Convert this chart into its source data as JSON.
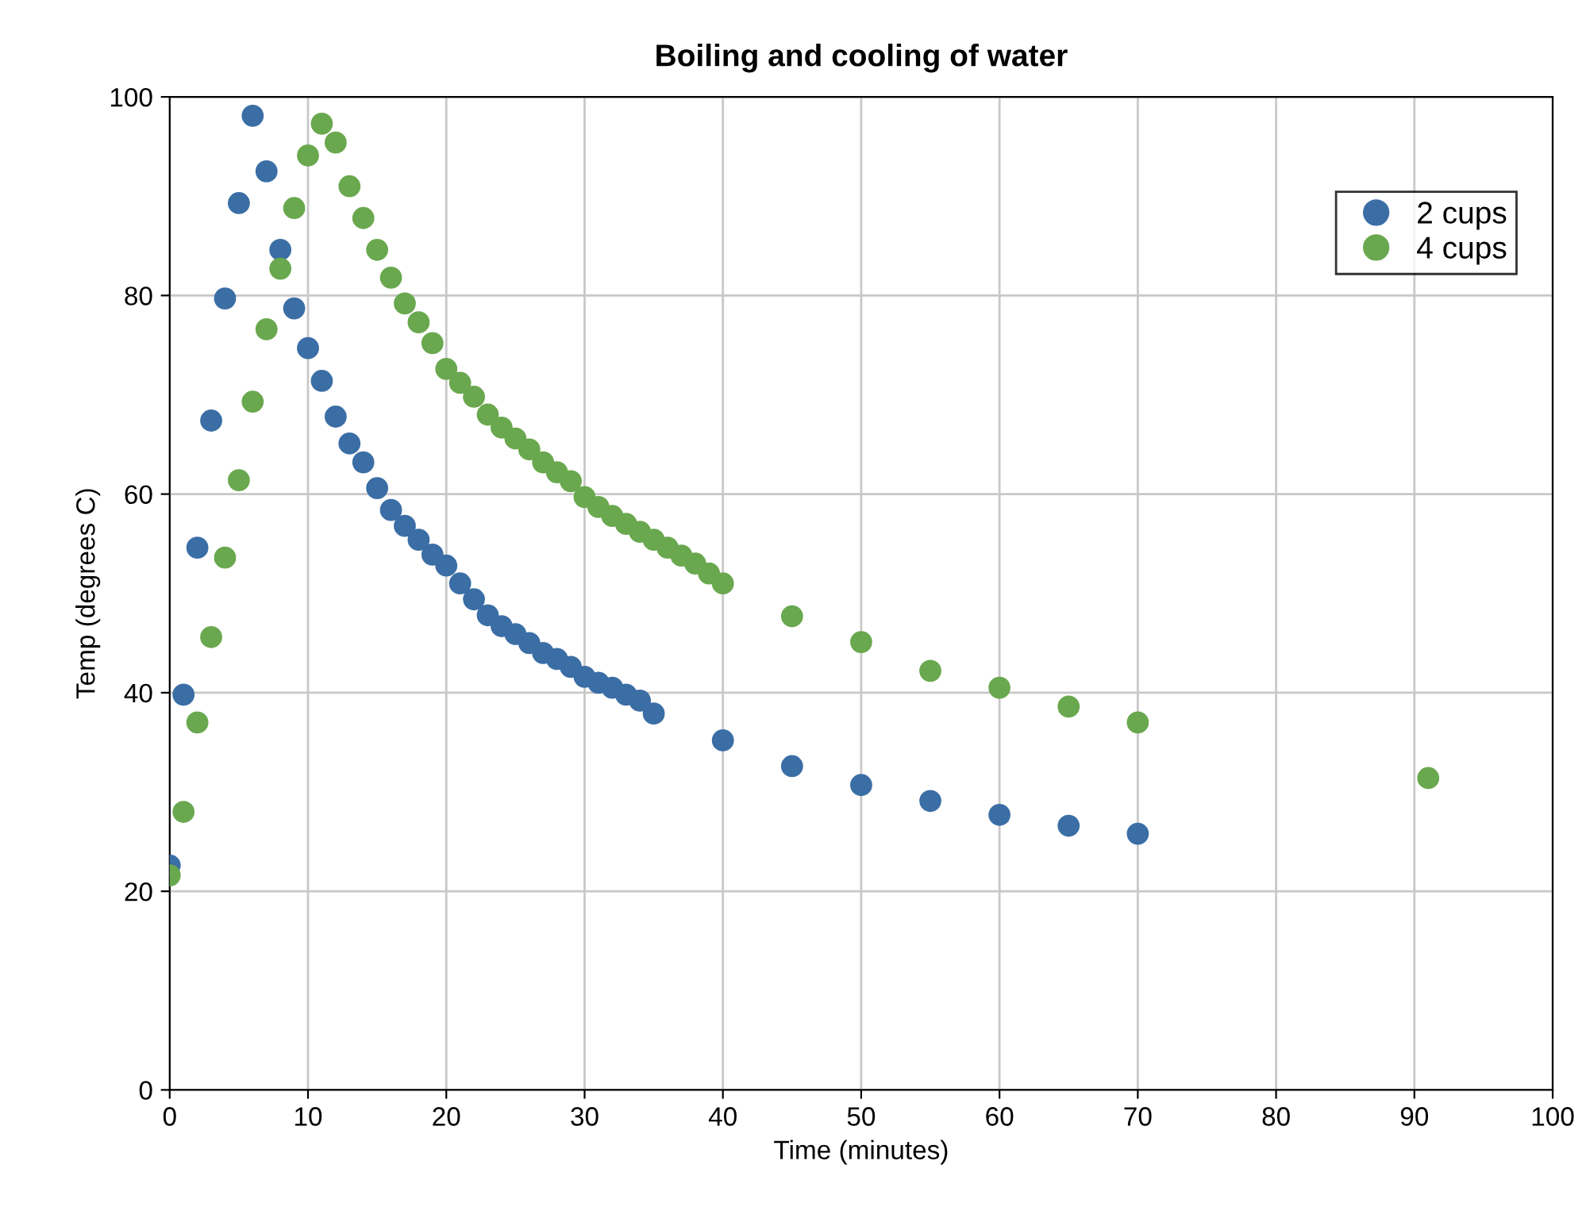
{
  "chart_data": {
    "type": "scatter",
    "title": "Boiling and cooling of water",
    "xlabel": "Time (minutes)",
    "ylabel": "Temp (degrees C)",
    "xlim": [
      0,
      100
    ],
    "xticks": [
      0,
      10,
      20,
      30,
      40,
      50,
      60,
      70,
      80,
      90,
      100
    ],
    "ylim": [
      0,
      100
    ],
    "yticks": [
      0,
      20,
      40,
      60,
      80,
      100
    ],
    "grid": true,
    "legend": "top right",
    "marker": "circle",
    "series": [
      {
        "name": "2 cups",
        "color": "#3b6ea5",
        "x": [
          0,
          1,
          2,
          3,
          4,
          5,
          6,
          7,
          8,
          9,
          10,
          11,
          12,
          13,
          14,
          15,
          16,
          17,
          18,
          19,
          20,
          21,
          22,
          23,
          24,
          25,
          26,
          27,
          28,
          29,
          30,
          31,
          32,
          33,
          34,
          35,
          40,
          45,
          50,
          55,
          60,
          65,
          70
        ],
        "values": [
          22.6,
          39.8,
          54.6,
          67.4,
          79.7,
          89.3,
          98.1,
          92.5,
          84.6,
          78.7,
          74.7,
          71.4,
          67.8,
          65.1,
          63.2,
          60.6,
          58.4,
          56.8,
          55.4,
          53.9,
          52.8,
          51.0,
          49.4,
          47.8,
          46.7,
          45.9,
          45.0,
          44.0,
          43.4,
          42.6,
          41.6,
          41.0,
          40.5,
          39.8,
          39.2,
          37.9,
          35.2,
          32.6,
          30.7,
          29.1,
          27.7,
          26.6,
          25.8
        ]
      },
      {
        "name": "4 cups",
        "color": "#6aa84f",
        "x": [
          0,
          1,
          2,
          3,
          4,
          5,
          6,
          7,
          8,
          9,
          10,
          11,
          12,
          13,
          14,
          15,
          16,
          17,
          18,
          19,
          20,
          21,
          22,
          23,
          24,
          25,
          26,
          27,
          28,
          29,
          30,
          31,
          32,
          33,
          34,
          35,
          36,
          37,
          38,
          39,
          40,
          45,
          50,
          55,
          60,
          65,
          70,
          91
        ],
        "values": [
          21.6,
          28.0,
          37.0,
          45.6,
          53.6,
          61.4,
          69.3,
          76.6,
          82.7,
          88.8,
          94.1,
          97.3,
          95.4,
          91.0,
          87.8,
          84.6,
          81.8,
          79.2,
          77.3,
          75.2,
          72.6,
          71.2,
          69.8,
          68.0,
          66.7,
          65.6,
          64.5,
          63.2,
          62.2,
          61.3,
          59.7,
          58.7,
          57.8,
          57.0,
          56.2,
          55.4,
          54.6,
          53.8,
          53.0,
          52.0,
          51.0,
          47.7,
          45.1,
          42.2,
          40.5,
          38.6,
          37.0,
          31.4
        ]
      }
    ]
  }
}
